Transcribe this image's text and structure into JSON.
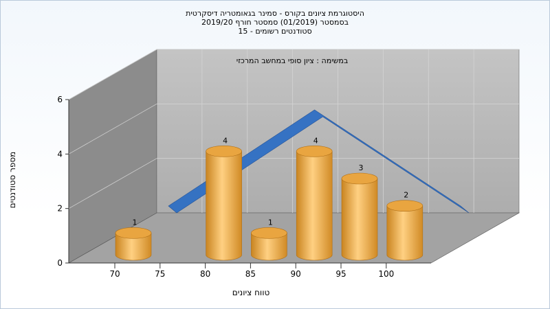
{
  "chart_data": {
    "type": "bar",
    "title_lines": [
      "היסטוגרמת ציונים בקורס - סמינר בגאומטריה דיסקרטית",
      "בסמסטר  (01/2019)  סמסטר חורף 2019/20",
      "סטודנטים רשומים - 15"
    ],
    "annotation": "במשימה : ציון סופי במחשב המרכזי",
    "xlabel": "טווח ציונים",
    "ylabel": "מספר סטודנטים",
    "x_ticks": [
      "70",
      "75",
      "80",
      "85",
      "90",
      "95",
      "100"
    ],
    "y_ticks": [
      "0",
      "2",
      "4",
      "6"
    ],
    "ylim": [
      0,
      6
    ],
    "categories": [
      "70",
      "80",
      "85",
      "90",
      "95",
      "100"
    ],
    "values": [
      1,
      4,
      1,
      4,
      3,
      2
    ],
    "curve": {
      "type": "area-ribbon",
      "values": [
        0,
        1,
        2,
        3,
        4,
        5,
        4,
        3,
        2,
        1,
        0
      ]
    },
    "colors": {
      "bar": "#f0a030",
      "curve": "#2f6fc4",
      "back_wall": "#b9b9b9",
      "side_wall": "#8c8c8c",
      "floor": "#a3a3a3"
    },
    "grid": true
  }
}
